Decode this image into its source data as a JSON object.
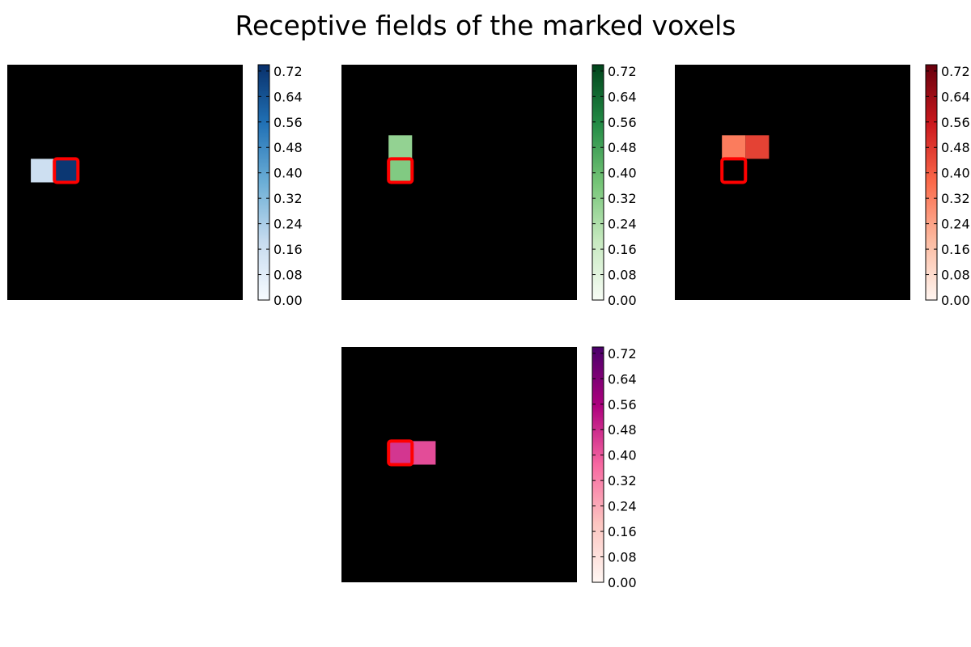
{
  "title": "Receptive fields of the marked voxels",
  "chart_data": [
    {
      "type": "heatmap",
      "colormap": "Blues",
      "colors": [
        "#f7fbff",
        "#c6dbef",
        "#6baed6",
        "#2171b5",
        "#08306b"
      ],
      "grid_size": [
        10,
        10
      ],
      "cells": [
        {
          "row": 4,
          "col": 1,
          "value": 0.16
        },
        {
          "row": 4,
          "col": 2,
          "value": 0.72
        }
      ],
      "marked_voxel": {
        "row": 4,
        "col": 2
      },
      "colorbar": {
        "min": 0.0,
        "max": 0.74,
        "ticks": [
          "0.00",
          "0.08",
          "0.16",
          "0.24",
          "0.32",
          "0.40",
          "0.48",
          "0.56",
          "0.64",
          "0.72"
        ]
      }
    },
    {
      "type": "heatmap",
      "colormap": "Greens",
      "colors": [
        "#f7fcf5",
        "#c7e9c0",
        "#74c476",
        "#238b45",
        "#00441b"
      ],
      "grid_size": [
        10,
        10
      ],
      "cells": [
        {
          "row": 3,
          "col": 2,
          "value": 0.3
        },
        {
          "row": 4,
          "col": 2,
          "value": 0.34
        }
      ],
      "marked_voxel": {
        "row": 4,
        "col": 2
      },
      "colorbar": {
        "min": 0.0,
        "max": 0.74,
        "ticks": [
          "0.00",
          "0.08",
          "0.16",
          "0.24",
          "0.32",
          "0.40",
          "0.48",
          "0.56",
          "0.64",
          "0.72"
        ]
      }
    },
    {
      "type": "heatmap",
      "colormap": "Reds",
      "colors": [
        "#fff5f0",
        "#fcbba1",
        "#fb6a4a",
        "#cb181d",
        "#67000d"
      ],
      "grid_size": [
        10,
        10
      ],
      "cells": [
        {
          "row": 3,
          "col": 2,
          "value": 0.33
        },
        {
          "row": 3,
          "col": 3,
          "value": 0.46
        }
      ],
      "marked_voxel": {
        "row": 4,
        "col": 2
      },
      "colorbar": {
        "min": 0.0,
        "max": 0.74,
        "ticks": [
          "0.00",
          "0.08",
          "0.16",
          "0.24",
          "0.32",
          "0.40",
          "0.48",
          "0.56",
          "0.64",
          "0.72"
        ]
      }
    },
    {
      "type": "heatmap",
      "colormap": "RdPu",
      "colors": [
        "#fff7f3",
        "#fcc5c0",
        "#f768a1",
        "#ae017e",
        "#49006a"
      ],
      "grid_size": [
        10,
        10
      ],
      "cells": [
        {
          "row": 4,
          "col": 2,
          "value": 0.46
        },
        {
          "row": 4,
          "col": 3,
          "value": 0.42
        }
      ],
      "marked_voxel": {
        "row": 4,
        "col": 2
      },
      "colorbar": {
        "min": 0.0,
        "max": 0.74,
        "ticks": [
          "0.00",
          "0.08",
          "0.16",
          "0.24",
          "0.32",
          "0.40",
          "0.48",
          "0.56",
          "0.64",
          "0.72"
        ]
      }
    }
  ]
}
